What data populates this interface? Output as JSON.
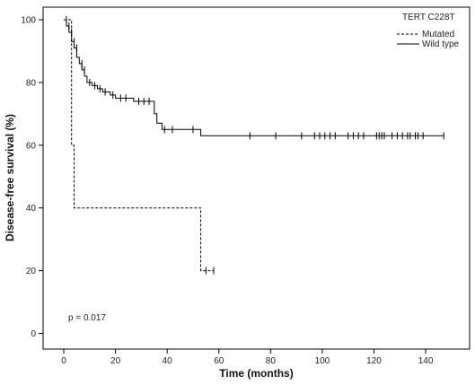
{
  "chart_data": {
    "type": "line",
    "title": "",
    "xlabel": "Time (months)",
    "ylabel": "Disease-free survival (%)",
    "xlim": [
      -8,
      157
    ],
    "ylim": [
      -5,
      104
    ],
    "x_ticks": [
      0,
      20,
      40,
      60,
      80,
      100,
      120,
      140
    ],
    "y_ticks": [
      0,
      20,
      40,
      60,
      80,
      100
    ],
    "grid": false,
    "legend": {
      "title": "TERT C228T",
      "placement": "top-right"
    },
    "annotation": "p = 0.017",
    "series": [
      {
        "name": "Mutated",
        "style": "dashed",
        "color": "#000000",
        "steps": [
          [
            0,
            100
          ],
          [
            3,
            100
          ],
          [
            3,
            60
          ],
          [
            4,
            60
          ],
          [
            4,
            40
          ],
          [
            53,
            40
          ],
          [
            53,
            20
          ],
          [
            58,
            20
          ]
        ],
        "censored": [
          [
            1,
            100
          ],
          [
            55,
            20
          ],
          [
            58,
            20
          ]
        ]
      },
      {
        "name": "Wild type",
        "style": "solid",
        "color": "#000000",
        "steps": [
          [
            0,
            100
          ],
          [
            1,
            100
          ],
          [
            1,
            98
          ],
          [
            2,
            98
          ],
          [
            2,
            96
          ],
          [
            3,
            96
          ],
          [
            3,
            93
          ],
          [
            4,
            93
          ],
          [
            4,
            91
          ],
          [
            5,
            91
          ],
          [
            5,
            88
          ],
          [
            6,
            88
          ],
          [
            6,
            86
          ],
          [
            7,
            86
          ],
          [
            7,
            84
          ],
          [
            8,
            84
          ],
          [
            8,
            82
          ],
          [
            9,
            82
          ],
          [
            9,
            80
          ],
          [
            11,
            80
          ],
          [
            11,
            79
          ],
          [
            13,
            79
          ],
          [
            13,
            78
          ],
          [
            15,
            78
          ],
          [
            15,
            77
          ],
          [
            18,
            77
          ],
          [
            18,
            76
          ],
          [
            20,
            76
          ],
          [
            20,
            75
          ],
          [
            27,
            75
          ],
          [
            27,
            74
          ],
          [
            35,
            74
          ],
          [
            35,
            70
          ],
          [
            36,
            70
          ],
          [
            36,
            67
          ],
          [
            38,
            67
          ],
          [
            38,
            65
          ],
          [
            53,
            65
          ],
          [
            53,
            63
          ],
          [
            147,
            63
          ]
        ],
        "censored": [
          [
            2,
            98
          ],
          [
            3,
            96
          ],
          [
            4,
            93
          ],
          [
            5,
            91
          ],
          [
            7,
            86
          ],
          [
            8,
            84
          ],
          [
            10,
            80
          ],
          [
            12,
            79
          ],
          [
            14,
            78
          ],
          [
            16,
            77
          ],
          [
            19,
            76
          ],
          [
            22,
            75
          ],
          [
            24,
            75
          ],
          [
            29,
            74
          ],
          [
            31,
            74
          ],
          [
            33,
            74
          ],
          [
            39,
            65
          ],
          [
            42,
            65
          ],
          [
            50,
            65
          ],
          [
            72,
            63
          ],
          [
            82,
            63
          ],
          [
            92,
            63
          ],
          [
            97,
            63
          ],
          [
            99,
            63
          ],
          [
            101,
            63
          ],
          [
            103,
            63
          ],
          [
            105,
            63
          ],
          [
            110,
            63
          ],
          [
            112,
            63
          ],
          [
            114,
            63
          ],
          [
            116,
            63
          ],
          [
            121,
            63
          ],
          [
            122,
            63
          ],
          [
            123,
            63
          ],
          [
            124,
            63
          ],
          [
            127,
            63
          ],
          [
            129,
            63
          ],
          [
            131,
            63
          ],
          [
            133,
            63
          ],
          [
            134,
            63
          ],
          [
            136,
            63
          ],
          [
            137,
            63
          ],
          [
            139,
            63
          ],
          [
            147,
            63
          ]
        ]
      }
    ]
  }
}
